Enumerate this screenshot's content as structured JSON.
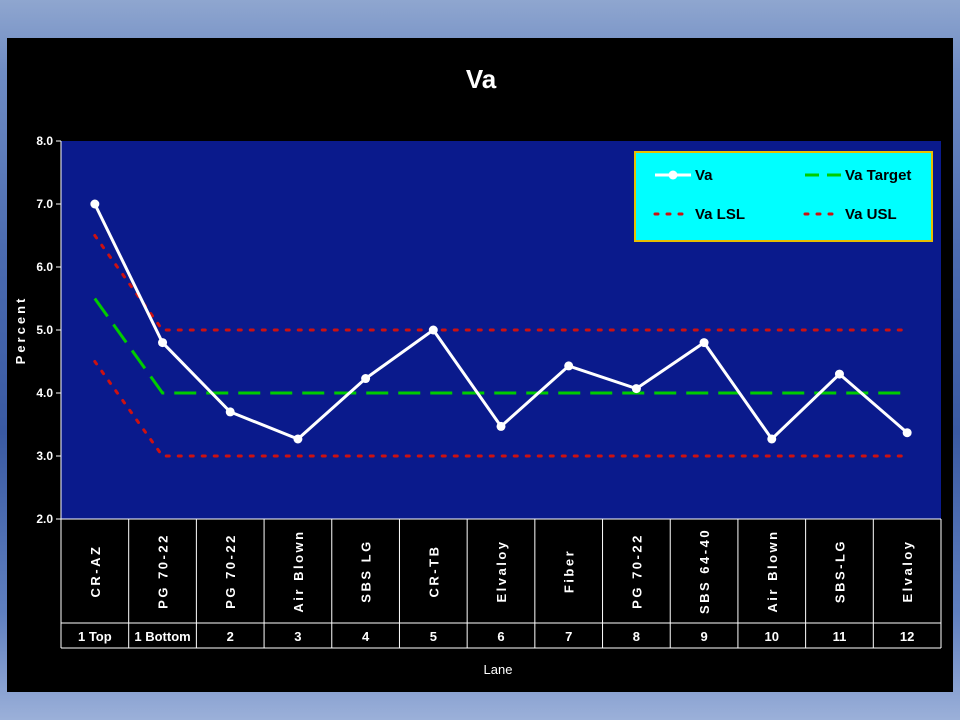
{
  "chart_data": {
    "type": "line",
    "title": "Va",
    "ylabel": "Percent",
    "xlabel": "Lane",
    "ylim": [
      2.0,
      8.0
    ],
    "yticks": [
      "2.0",
      "3.0",
      "4.0",
      "5.0",
      "6.0",
      "7.0",
      "8.0"
    ],
    "categories": [
      "CR-AZ",
      "PG 70-22",
      "PG 70-22",
      "Air Blown",
      "SBS LG",
      "CR-TB",
      "Elvaloy",
      "Fiber",
      "PG 70-22",
      "SBS 64-40",
      "Air Blown",
      "SBS-LG",
      "Elvaloy"
    ],
    "lanes": [
      "1 Top",
      "1 Bottom",
      "2",
      "3",
      "4",
      "5",
      "6",
      "7",
      "8",
      "9",
      "10",
      "11",
      "12"
    ],
    "grid": false,
    "legend_position": "top-right",
    "series": [
      {
        "name": "Va",
        "values": [
          7.0,
          4.8,
          3.7,
          3.27,
          4.23,
          5.0,
          3.47,
          4.43,
          4.07,
          4.8,
          3.27,
          4.3,
          3.37
        ],
        "color": "#ffffff",
        "style": "solid-markers"
      },
      {
        "name": "Va Target",
        "values": [
          5.5,
          4.0,
          4.0,
          4.0,
          4.0,
          4.0,
          4.0,
          4.0,
          4.0,
          4.0,
          4.0,
          4.0,
          4.0
        ],
        "color": "#00cc00",
        "style": "dashed"
      },
      {
        "name": "Va LSL",
        "values": [
          4.5,
          3.0,
          3.0,
          3.0,
          3.0,
          3.0,
          3.0,
          3.0,
          3.0,
          3.0,
          3.0,
          3.0,
          3.0
        ],
        "color": "#cc1111",
        "style": "dotted"
      },
      {
        "name": "Va USL",
        "values": [
          6.5,
          5.0,
          5.0,
          5.0,
          5.0,
          5.0,
          5.0,
          5.0,
          5.0,
          5.0,
          5.0,
          5.0,
          5.0
        ],
        "color": "#cc1111",
        "style": "dotted"
      }
    ],
    "colors": {
      "plot_bg": "#0a1a8c",
      "legend_bg": "#00ffff",
      "legend_border": "#e8c000",
      "background": "#000000"
    }
  }
}
